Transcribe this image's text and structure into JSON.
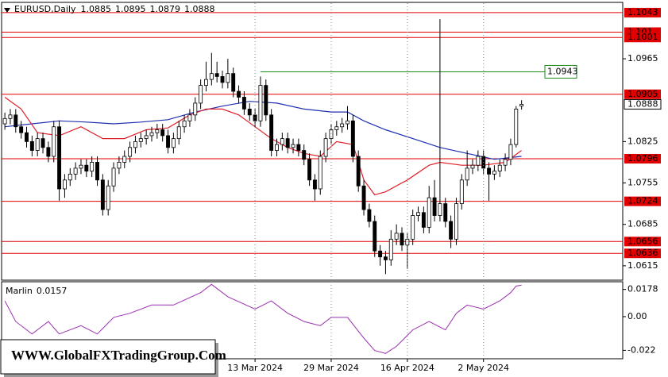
{
  "watermark": "WWW.GlobalFXTradingGroup.Com",
  "chart_data": [
    {
      "type": "candlestick",
      "title": "EURUSD,Daily",
      "up_color": "#ffffff",
      "down_color": "#000000",
      "candles": [
        [
          1.0855,
          1.0874,
          1.0845,
          1.0864
        ],
        [
          1.0864,
          1.088,
          1.0854,
          1.087
        ],
        [
          1.087,
          1.088,
          1.084,
          1.085
        ],
        [
          1.085,
          1.086,
          1.083,
          1.084
        ],
        [
          1.084,
          1.085,
          1.0815,
          1.0825
        ],
        [
          1.0825,
          1.0835,
          1.08,
          1.081
        ],
        [
          1.081,
          1.084,
          1.08,
          1.083
        ],
        [
          1.083,
          1.084,
          1.0805,
          1.0815
        ],
        [
          1.0815,
          1.0825,
          1.079,
          1.08
        ],
        [
          1.08,
          1.086,
          1.079,
          1.085
        ],
        [
          1.085,
          1.086,
          1.0725,
          1.0745
        ],
        [
          1.0745,
          1.077,
          1.073,
          1.076
        ],
        [
          1.076,
          1.078,
          1.075,
          1.077
        ],
        [
          1.077,
          1.079,
          1.076,
          1.078
        ],
        [
          1.078,
          1.0795,
          1.077,
          1.0785
        ],
        [
          1.0785,
          1.0795,
          1.0765,
          1.0775
        ],
        [
          1.0775,
          1.08,
          1.0765,
          1.079
        ],
        [
          1.079,
          1.08,
          1.075,
          1.076
        ],
        [
          1.076,
          1.077,
          1.07,
          1.071
        ],
        [
          1.071,
          1.076,
          1.07,
          1.075
        ],
        [
          1.075,
          1.079,
          1.074,
          1.078
        ],
        [
          1.078,
          1.08,
          1.077,
          1.079
        ],
        [
          1.079,
          1.081,
          1.078,
          1.08
        ],
        [
          1.08,
          1.0825,
          1.079,
          1.0815
        ],
        [
          1.0815,
          1.0835,
          1.0805,
          1.0825
        ],
        [
          1.0825,
          1.084,
          1.0815,
          1.083
        ],
        [
          1.083,
          1.0845,
          1.082,
          1.0835
        ],
        [
          1.0835,
          1.085,
          1.0825,
          1.084
        ],
        [
          1.084,
          1.0855,
          1.083,
          1.0845
        ],
        [
          1.0845,
          1.0855,
          1.0825,
          1.0835
        ],
        [
          1.0835,
          1.0845,
          1.0805,
          1.0815
        ],
        [
          1.0815,
          1.084,
          1.0805,
          1.083
        ],
        [
          1.083,
          1.086,
          1.082,
          1.085
        ],
        [
          1.085,
          1.087,
          1.084,
          1.086
        ],
        [
          1.086,
          1.088,
          1.085,
          1.087
        ],
        [
          1.087,
          1.09,
          1.086,
          1.089
        ],
        [
          1.089,
          1.093,
          1.088,
          1.092
        ],
        [
          1.092,
          1.096,
          1.091,
          1.093
        ],
        [
          1.093,
          1.0975,
          1.092,
          1.094
        ],
        [
          1.094,
          1.096,
          1.0925,
          1.0935
        ],
        [
          1.0935,
          1.0945,
          1.0915,
          1.0925
        ],
        [
          1.0925,
          1.0965,
          1.0915,
          1.094
        ],
        [
          1.094,
          1.095,
          1.09,
          1.091
        ],
        [
          1.091,
          1.092,
          1.089,
          1.09
        ],
        [
          1.09,
          1.091,
          1.087,
          1.088
        ],
        [
          1.088,
          1.089,
          1.086,
          1.087
        ],
        [
          1.087,
          1.088,
          1.085,
          1.086
        ],
        [
          1.086,
          1.0935,
          1.085,
          1.092
        ],
        [
          1.092,
          1.093,
          1.086,
          1.087
        ],
        [
          1.087,
          1.088,
          1.08,
          1.081
        ],
        [
          1.081,
          1.083,
          1.08,
          1.082
        ],
        [
          1.082,
          1.084,
          1.081,
          1.083
        ],
        [
          1.083,
          1.084,
          1.0805,
          1.0815
        ],
        [
          1.0815,
          1.083,
          1.0805,
          1.082
        ],
        [
          1.082,
          1.083,
          1.08,
          1.081
        ],
        [
          1.081,
          1.082,
          1.0785,
          1.0795
        ],
        [
          1.0795,
          1.0805,
          1.075,
          1.076
        ],
        [
          1.076,
          1.077,
          1.0725,
          1.0745
        ],
        [
          1.0745,
          1.081,
          1.0735,
          1.08
        ],
        [
          1.08,
          1.084,
          1.079,
          1.083
        ],
        [
          1.083,
          1.0855,
          1.082,
          1.0845
        ],
        [
          1.0845,
          1.086,
          1.0835,
          1.085
        ],
        [
          1.085,
          1.0865,
          1.084,
          1.0855
        ],
        [
          1.0855,
          1.0885,
          1.0845,
          1.086
        ],
        [
          1.086,
          1.087,
          1.079,
          1.08
        ],
        [
          1.08,
          1.081,
          1.074,
          1.075
        ],
        [
          1.075,
          1.076,
          1.07,
          1.071
        ],
        [
          1.071,
          1.072,
          1.068,
          1.069
        ],
        [
          1.069,
          1.07,
          1.063,
          1.064
        ],
        [
          1.064,
          1.065,
          1.0615,
          1.063
        ],
        [
          1.063,
          1.064,
          1.0601,
          1.0625
        ],
        [
          1.0625,
          1.0675,
          1.0615,
          1.066
        ],
        [
          1.066,
          1.0685,
          1.065,
          1.067
        ],
        [
          1.067,
          1.068,
          1.064,
          1.065
        ],
        [
          1.065,
          1.067,
          1.061,
          1.066
        ],
        [
          1.066,
          1.071,
          1.065,
          1.07
        ],
        [
          1.07,
          1.0715,
          1.069,
          1.0705
        ],
        [
          1.0705,
          1.0715,
          1.067,
          1.068
        ],
        [
          1.068,
          1.075,
          1.067,
          1.073
        ],
        [
          1.073,
          1.076,
          1.069,
          1.07
        ],
        [
          1.07,
          1.1032,
          1.069,
          1.072
        ],
        [
          1.072,
          1.073,
          1.068,
          1.069
        ],
        [
          1.069,
          1.07,
          1.0645,
          1.066
        ],
        [
          1.066,
          1.073,
          1.065,
          1.072
        ],
        [
          1.072,
          1.077,
          1.071,
          1.076
        ],
        [
          1.076,
          1.081,
          1.075,
          1.078
        ],
        [
          1.078,
          1.0795,
          1.077,
          1.0785
        ],
        [
          1.0785,
          1.081,
          1.0775,
          1.08
        ],
        [
          1.08,
          1.081,
          1.077,
          1.078
        ],
        [
          1.078,
          1.079,
          1.0725,
          1.077
        ],
        [
          1.077,
          1.0785,
          1.076,
          1.0775
        ],
        [
          1.0775,
          1.0795,
          1.0765,
          1.0785
        ],
        [
          1.0785,
          1.0805,
          1.0775,
          1.0795
        ],
        [
          1.0795,
          1.083,
          1.0785,
          1.082
        ],
        [
          1.082,
          1.0885,
          1.0815,
          1.088
        ],
        [
          1.0885,
          1.0895,
          1.0879,
          1.0888
        ]
      ],
      "series": [
        {
          "color": "#1f2fb0",
          "x": [
            0,
            5,
            10,
            15,
            20,
            25,
            30,
            35,
            40,
            45,
            50,
            55,
            60,
            63,
            66,
            70,
            75,
            80,
            85,
            90,
            95
          ],
          "values": [
            1.085,
            1.0855,
            1.086,
            1.0858,
            1.0855,
            1.0858,
            1.0862,
            1.0875,
            1.0885,
            1.0893,
            1.089,
            1.088,
            1.0875,
            1.0875,
            1.086,
            1.0845,
            1.083,
            1.0815,
            1.0805,
            1.0795,
            1.08
          ]
        },
        {
          "color": "#e0202a",
          "x": [
            0,
            3,
            6,
            10,
            14,
            18,
            22,
            26,
            30,
            34,
            37,
            40,
            43,
            46,
            49,
            52,
            55,
            58,
            61,
            64,
            66,
            68,
            70,
            74,
            78,
            80,
            84,
            88,
            92,
            95
          ],
          "values": [
            1.09,
            1.088,
            1.084,
            1.0835,
            1.085,
            1.083,
            1.083,
            1.0845,
            1.0848,
            1.087,
            1.088,
            1.088,
            1.087,
            1.085,
            1.083,
            1.0815,
            1.0805,
            1.08,
            1.0825,
            1.082,
            1.076,
            1.0735,
            1.074,
            1.076,
            1.0785,
            1.079,
            1.0785,
            1.0785,
            1.079,
            1.081
          ]
        }
      ],
      "levels": [
        1.1043,
        1.101,
        1.1001,
        1.0905,
        1.0796,
        1.0724,
        1.0656,
        1.0636
      ],
      "level_color": "#e00000",
      "marked_level": {
        "value": 1.0943,
        "start": 47,
        "color": "#1a8a1a"
      },
      "current_price": 1.0888,
      "xlim": [
        -0.6,
        113.6
      ],
      "ylim": [
        1.0592,
        1.1059
      ],
      "yticks": [
        1.0965,
        1.0825,
        1.0755,
        1.0685,
        1.0615
      ]
    },
    {
      "type": "line",
      "series": [
        {
          "name": "Marlin",
          "color": "#9b30b0",
          "x": [
            0,
            2,
            5,
            8,
            10,
            14,
            17,
            20,
            23,
            27,
            31,
            36,
            38,
            41,
            46,
            49,
            52,
            55,
            58,
            60,
            63,
            66,
            68,
            70,
            72,
            75,
            78,
            81,
            83,
            85,
            88,
            91,
            93,
            94,
            95
          ],
          "values": [
            0.0103,
            -0.0032,
            -0.0113,
            -0.0032,
            -0.0113,
            -0.0059,
            -0.0113,
            -0.0005,
            0.0022,
            0.0076,
            0.0076,
            0.0157,
            0.0211,
            0.013,
            0.0049,
            0.0103,
            0.0022,
            -0.0032,
            -0.0059,
            -0.0005,
            -0.0005,
            -0.014,
            -0.0221,
            -0.024,
            -0.0194,
            -0.0086,
            -0.0032,
            -0.0086,
            0.0022,
            0.0076,
            0.0049,
            0.0103,
            0.0157,
            0.02,
            0.0205
          ]
        }
      ],
      "current_value": 0.0157,
      "xlim": [
        -0.6,
        113.6
      ],
      "ylim": [
        -0.0275,
        0.0228
      ],
      "yticks": [
        0.0178,
        {
          "value": 0,
          "label": "0.00"
        },
        -0.022
      ],
      "xticks": [
        {
          "value": 46,
          "label": "13 Mar 2024"
        },
        {
          "value": 60,
          "label": "29 Mar 2024"
        },
        {
          "value": 74,
          "label": "16 Apr 2024"
        },
        {
          "value": 88,
          "label": "2 May 2024"
        }
      ]
    }
  ]
}
